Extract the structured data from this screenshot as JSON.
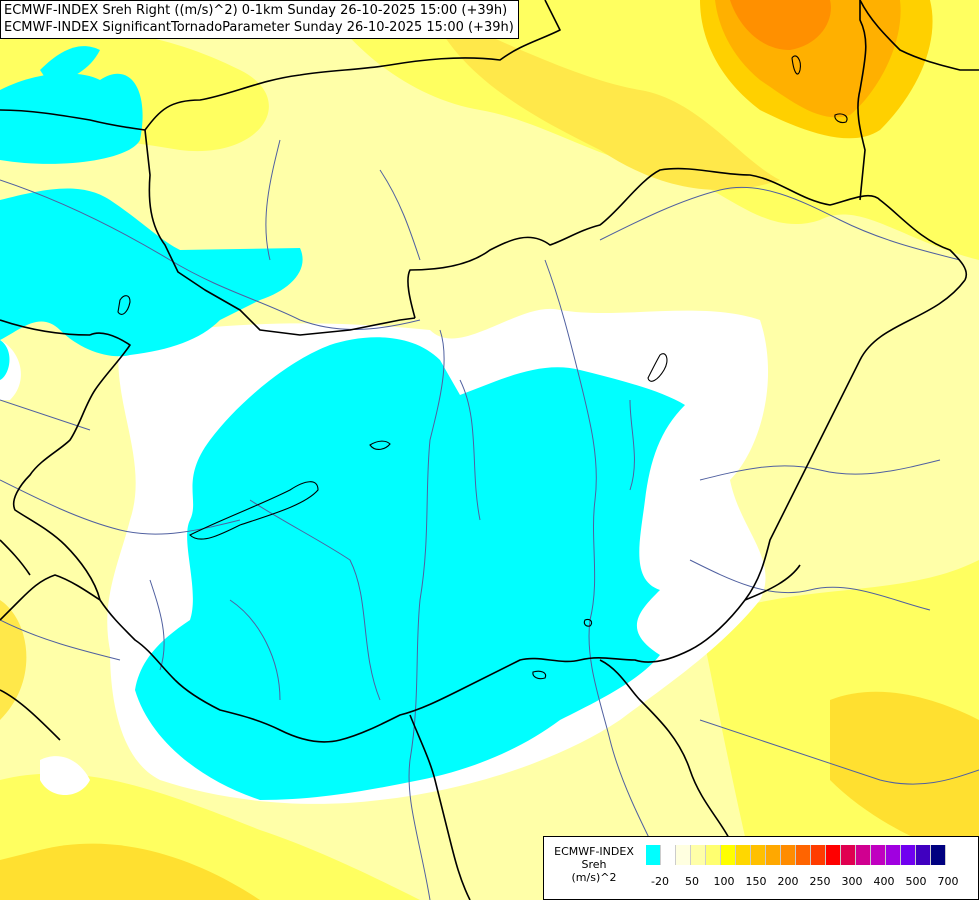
{
  "header": {
    "line1": "ECMWF-INDEX Sreh Right ((m/s)^2) 0-1km Sunday 26-10-2025 15:00 (+39h)",
    "line2": "ECMWF-INDEX SignificantTornadoParameter Sunday 26-10-2025 15:00 (+39h)"
  },
  "legend": {
    "title_line1": "ECMWF-INDEX",
    "title_line2": "Sreh",
    "title_line3": "(m/s)^2",
    "colors": [
      "#00ffff",
      "#ffffff",
      "#ffffe0",
      "#ffffa8",
      "#ffff70",
      "#ffff00",
      "#ffd700",
      "#ffc000",
      "#ffa800",
      "#ff8c00",
      "#ff6400",
      "#ff3c00",
      "#ff0000",
      "#e00050",
      "#d00090",
      "#c000c0",
      "#a000e0",
      "#7000f0",
      "#4000c0",
      "#000080"
    ],
    "ticks": [
      "-20",
      "50",
      "100",
      "150",
      "200",
      "250",
      "300",
      "400",
      "500",
      "700"
    ]
  },
  "colors": {
    "cyan": "#00ffff",
    "white": "#ffffff",
    "pale_yellow": "#ffffb0",
    "yellow": "#ffff60",
    "gold": "#ffe030",
    "orange": "#ffb000",
    "dark_orange": "#ff9000",
    "border": "#000000",
    "river": "#5060a0"
  }
}
